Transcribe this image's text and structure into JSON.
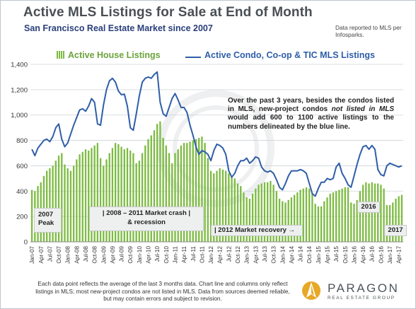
{
  "header": {
    "title": "Active MLS Listings for Sale at End of Month",
    "subtitle": "San Francisco Real Estate Market since 2007",
    "source_note": "Data reported to MLS per Infosparks."
  },
  "annotations": {
    "main_part1": "Over the past 3 years, besides the condos listed in MLS, new-project condos ",
    "main_italic": "not listed in MLS",
    "main_part2": " would add 600 to 1100 active listings to the numbers delineated by the blue line.",
    "peak_line1": "2007",
    "peak_line2": "Peak",
    "crash_line1": "| 2008 – 2011 Market crash |",
    "crash_line2": "& recession",
    "recovery": "| 2012 Market recovery →",
    "label_2016": "2016",
    "label_2017": "2017"
  },
  "footer": {
    "note": "Each data point reflects the average of the last 3 months data. Chart line and columns only reflect listings in MLS; most new-project condos are not listed in MLS. Data from sources deemed reliable, but may contain errors and subject to revision.",
    "brand": "PARAGON",
    "brand_sub": "REAL ESTATE GROUP"
  },
  "colors": {
    "bars": "#7dbb42",
    "line": "#2f5ea8",
    "grid": "#cfd4da",
    "title": "#4a4f55",
    "subtitle": "#2a3f7a"
  },
  "chart_data": {
    "type": "bar",
    "title": "Active MLS Listings for Sale at End of Month",
    "subtitle": "San Francisco Real Estate Market since 2007",
    "ylim": [
      0,
      1400
    ],
    "yticks": [
      0,
      200,
      400,
      600,
      800,
      1000,
      1200,
      1400
    ],
    "grid": true,
    "legend_position": "top",
    "x": [
      "Jan-07",
      "Feb-07",
      "Mar-07",
      "Apr-07",
      "May-07",
      "Jun-07",
      "Jul-07",
      "Aug-07",
      "Sep-07",
      "Oct-07",
      "Nov-07",
      "Dec-07",
      "Jan-08",
      "Feb-08",
      "Mar-08",
      "Apr-08",
      "May-08",
      "Jun-08",
      "Jul-08",
      "Aug-08",
      "Sep-08",
      "Oct-08",
      "Nov-08",
      "Dec-08",
      "Jan-09",
      "Feb-09",
      "Mar-09",
      "Apr-09",
      "May-09",
      "Jun-09",
      "Jul-09",
      "Aug-09",
      "Sep-09",
      "Oct-09",
      "Nov-09",
      "Dec-09",
      "Jan-10",
      "Feb-10",
      "Mar-10",
      "Apr-10",
      "May-10",
      "Jun-10",
      "Jul-10",
      "Aug-10",
      "Sep-10",
      "Oct-10",
      "Nov-10",
      "Dec-10",
      "Jan-11",
      "Feb-11",
      "Mar-11",
      "Apr-11",
      "May-11",
      "Jun-11",
      "Jul-11",
      "Aug-11",
      "Sep-11",
      "Oct-11",
      "Nov-11",
      "Dec-11",
      "Jan-12",
      "Feb-12",
      "Mar-12",
      "Apr-12",
      "May-12",
      "Jun-12",
      "Jul-12",
      "Aug-12",
      "Sep-12",
      "Oct-12",
      "Nov-12",
      "Dec-12",
      "Jan-13",
      "Feb-13",
      "Mar-13",
      "Apr-13",
      "May-13",
      "Jun-13",
      "Jul-13",
      "Aug-13",
      "Sep-13",
      "Oct-13",
      "Nov-13",
      "Dec-13",
      "Jan-14",
      "Feb-14",
      "Mar-14",
      "Apr-14",
      "May-14",
      "Jun-14",
      "Jul-14",
      "Aug-14",
      "Sep-14",
      "Oct-14",
      "Nov-14",
      "Dec-14",
      "Jan-15",
      "Feb-15",
      "Mar-15",
      "Apr-15",
      "May-15",
      "Jun-15",
      "Jul-15",
      "Aug-15",
      "Sep-15",
      "Oct-15",
      "Nov-15",
      "Dec-15",
      "Jan-16",
      "Feb-16",
      "Mar-16",
      "Apr-16",
      "May-16",
      "Jun-16",
      "Jul-16",
      "Aug-16",
      "Sep-16",
      "Oct-16",
      "Nov-16",
      "Dec-16",
      "Jan-17",
      "Feb-17",
      "Mar-17",
      "Apr-17",
      "May-17"
    ],
    "xtick_labels": [
      "Jan-07",
      "Apr-07",
      "Jul-07",
      "Oct-07",
      "Jan-08",
      "Apr-08",
      "Jul-08",
      "Oct-08",
      "Jan-09",
      "Apr-09",
      "Jul-09",
      "Oct-09",
      "Jan-10",
      "Apr-10",
      "Jul-10",
      "Oct-10",
      "Jan-11",
      "Apr-11",
      "Jul-11",
      "Oct-11",
      "Jan-12",
      "Apr-12",
      "Jul-12",
      "Oct-12",
      "Jan-13",
      "Apr-13",
      "Jul-13",
      "Oct-13",
      "Jan-14",
      "Apr-14",
      "Jul-14",
      "Oct-14",
      "Jan-15",
      "Apr-15",
      "Jul-15",
      "Oct-15",
      "Jan-16",
      "Apr-16",
      "Jul-16",
      "Oct-16",
      "Jan-17",
      "Apr-17"
    ],
    "series": [
      {
        "name": "Active House Listings",
        "type": "bar",
        "values": [
          410,
          400,
          440,
          470,
          520,
          560,
          580,
          600,
          640,
          680,
          700,
          610,
          580,
          560,
          600,
          650,
          690,
          710,
          730,
          720,
          740,
          760,
          780,
          660,
          600,
          650,
          700,
          740,
          780,
          770,
          750,
          730,
          740,
          720,
          700,
          620,
          640,
          700,
          760,
          810,
          840,
          880,
          930,
          950,
          820,
          760,
          700,
          620,
          700,
          730,
          760,
          780,
          780,
          790,
          800,
          810,
          820,
          830,
          780,
          660,
          560,
          540,
          560,
          580,
          570,
          560,
          540,
          520,
          500,
          460,
          440,
          390,
          350,
          340,
          380,
          420,
          450,
          460,
          470,
          470,
          480,
          450,
          400,
          340,
          320,
          310,
          330,
          350,
          370,
          390,
          410,
          420,
          430,
          420,
          380,
          300,
          280,
          280,
          320,
          350,
          380,
          390,
          400,
          410,
          420,
          430,
          430,
          310,
          300,
          330,
          400,
          450,
          470,
          460,
          470,
          460,
          460,
          450,
          420,
          290,
          290,
          310,
          340,
          360,
          370
        ]
      },
      {
        "name": "Active Condo, Co-op & TIC MLS Listings",
        "type": "line",
        "values": [
          730,
          680,
          740,
          770,
          800,
          810,
          790,
          830,
          900,
          930,
          810,
          750,
          780,
          850,
          920,
          980,
          1040,
          1050,
          1030,
          1070,
          1130,
          1100,
          930,
          920,
          1080,
          1200,
          1270,
          1290,
          1260,
          1190,
          1160,
          1165,
          1070,
          900,
          880,
          1010,
          1150,
          1260,
          1290,
          1300,
          1290,
          1320,
          1340,
          1100,
          1010,
          990,
          1060,
          1130,
          1170,
          1120,
          1060,
          1060,
          1020,
          920,
          840,
          750,
          690,
          720,
          710,
          690,
          640,
          720,
          770,
          760,
          740,
          690,
          560,
          510,
          540,
          600,
          640,
          640,
          660,
          620,
          640,
          670,
          660,
          590,
          560,
          550,
          560,
          540,
          490,
          430,
          410,
          460,
          520,
          560,
          560,
          560,
          570,
          560,
          540,
          460,
          380,
          360,
          420,
          470,
          470,
          500,
          490,
          500,
          590,
          620,
          540,
          500,
          450,
          430,
          520,
          610,
          690,
          750,
          760,
          730,
          760,
          730,
          570,
          530,
          520,
          600,
          620,
          610,
          600,
          590,
          600
        ]
      }
    ]
  }
}
